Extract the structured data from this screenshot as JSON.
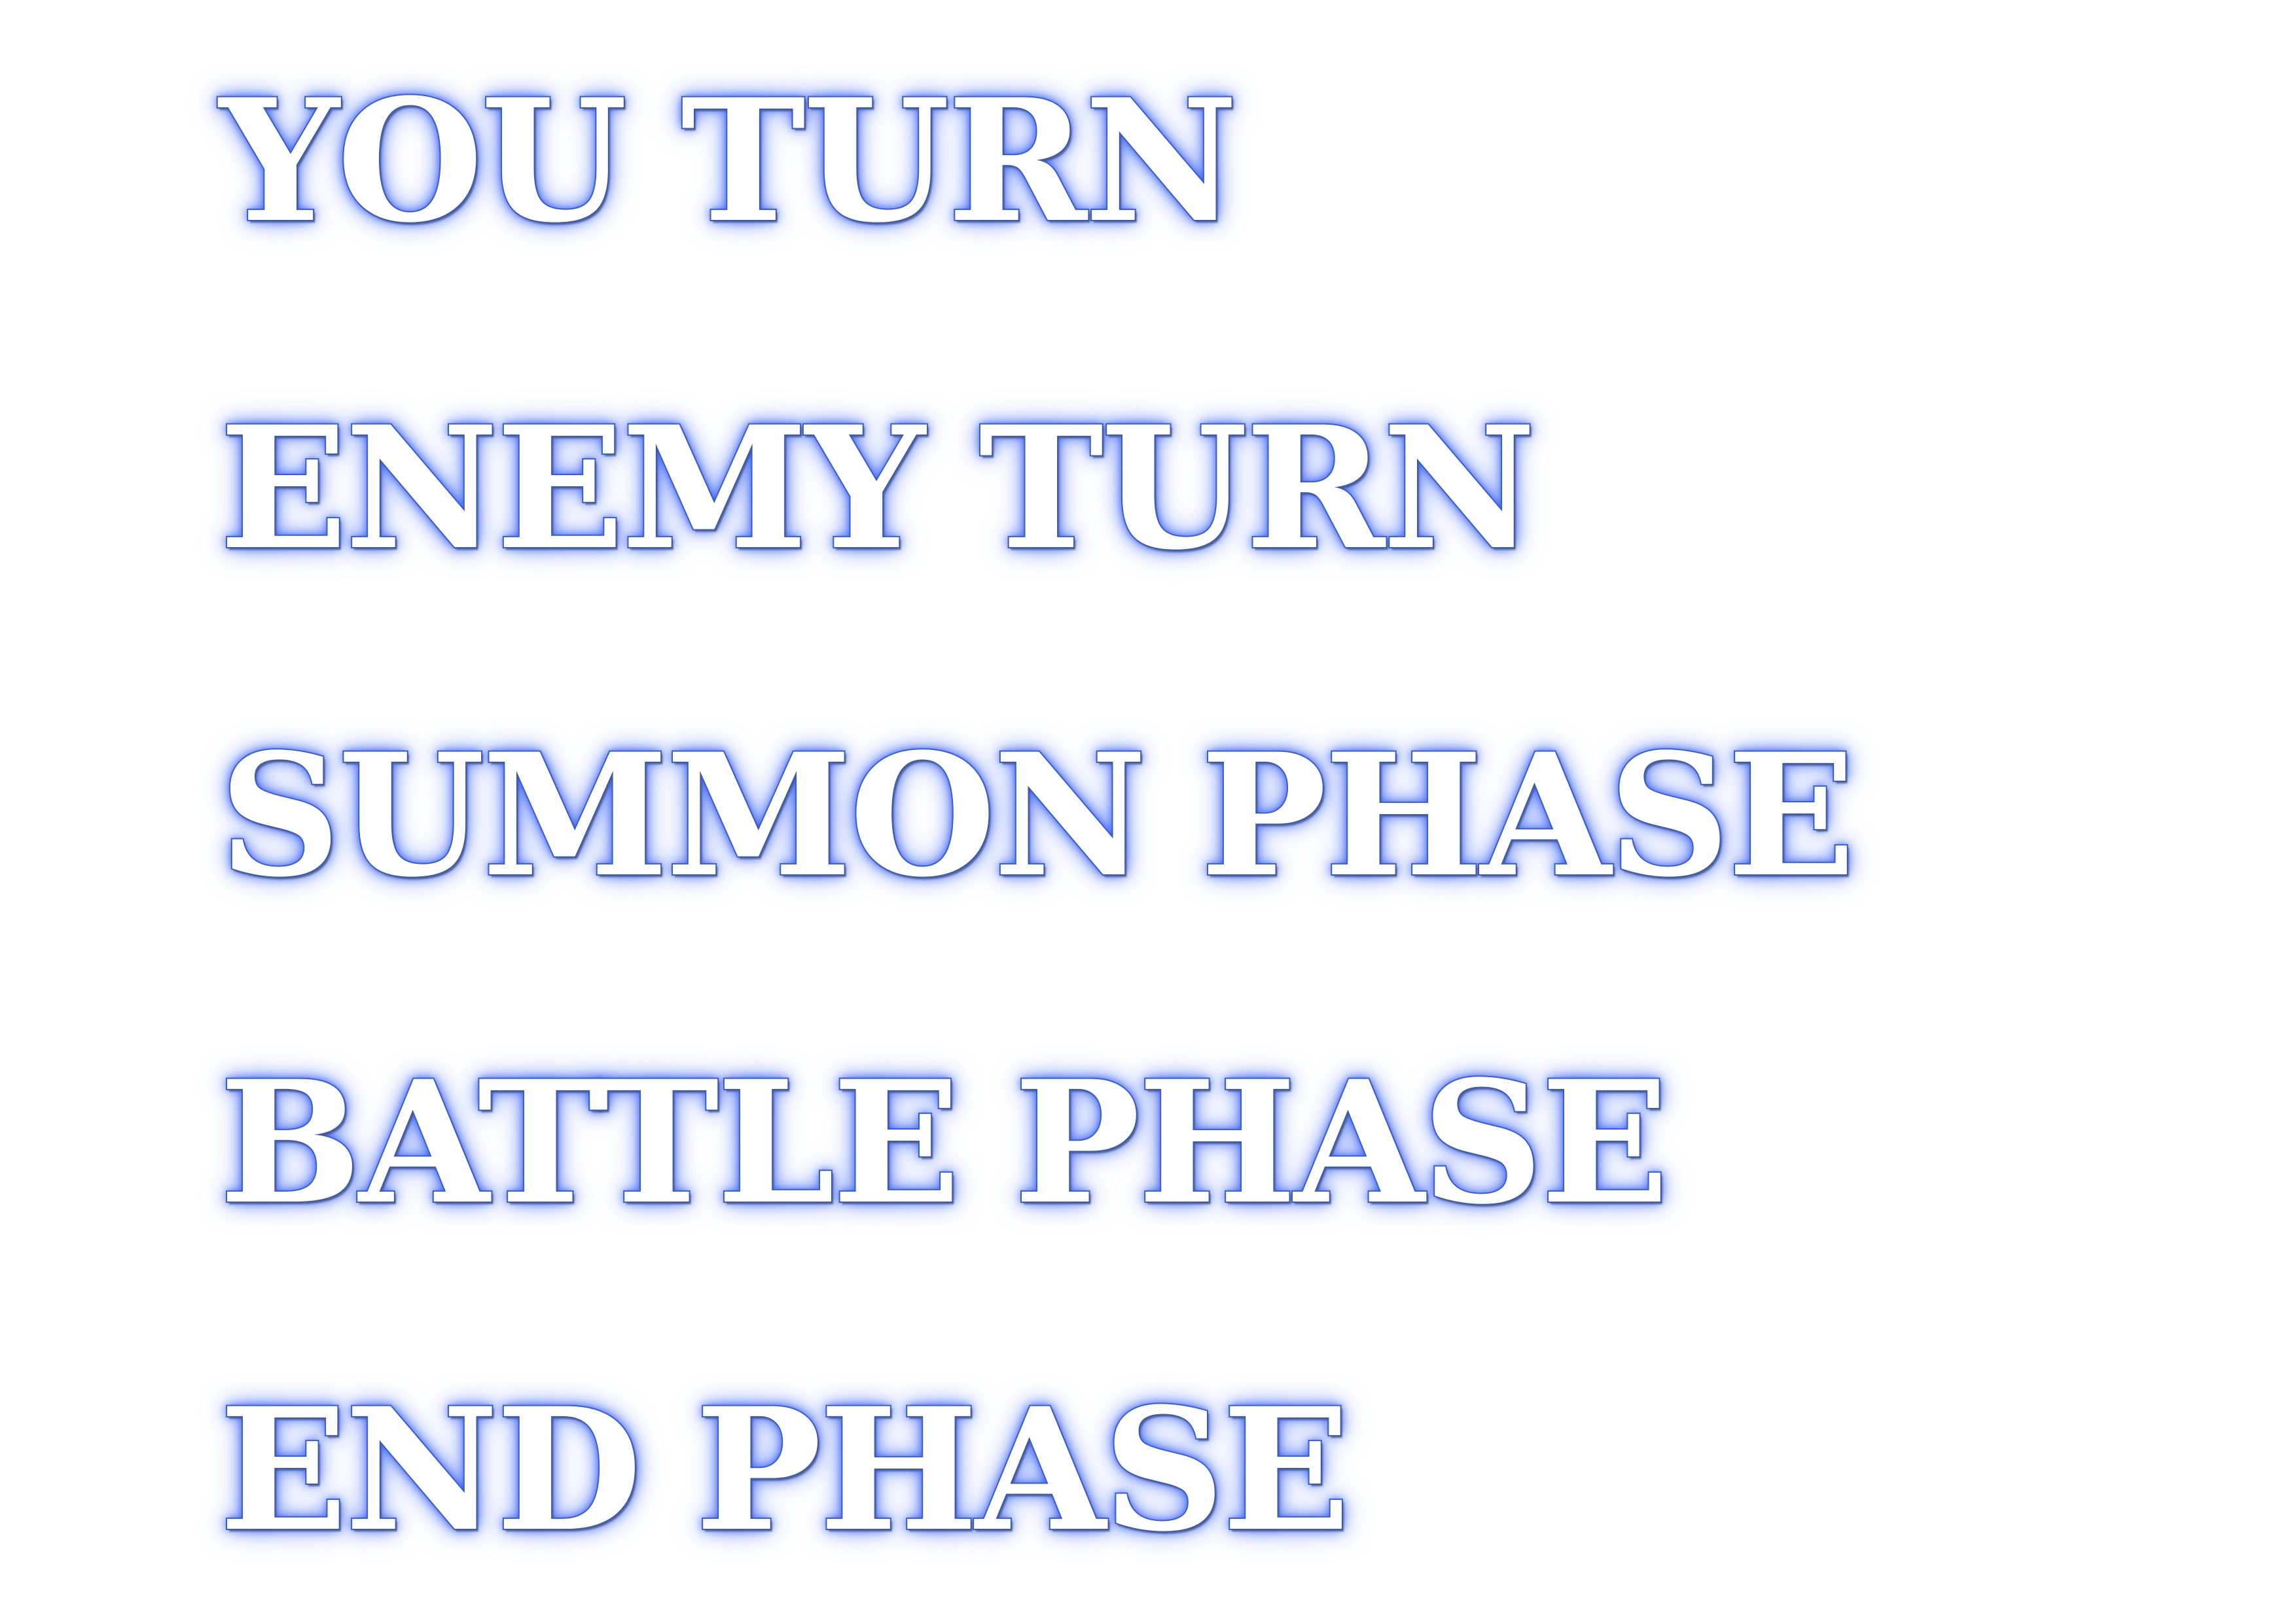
{
  "banners": [
    "YOU TURN",
    "ENEMY TURN",
    "SUMMON PHASE",
    "BATTLE PHASE",
    "END PHASE"
  ],
  "colors": {
    "background": "#ffffff",
    "text_fill": "#ffffff",
    "glow": "#3c64f5",
    "outline": "#3f5fae"
  }
}
